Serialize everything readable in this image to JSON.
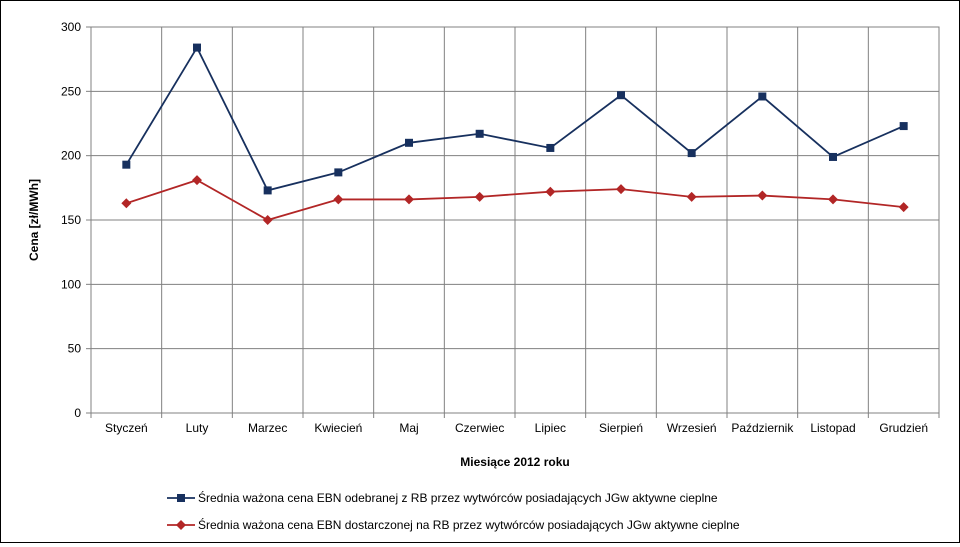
{
  "chart_data": {
    "type": "line",
    "xlabel": "Miesiące 2012 roku",
    "ylabel": "Cena [zł/MWh]",
    "ylim": [
      0,
      300
    ],
    "yticks": [
      0,
      50,
      100,
      150,
      200,
      250,
      300
    ],
    "grid": true,
    "legend_position": "bottom",
    "categories": [
      "Styczeń",
      "Luty",
      "Marzec",
      "Kwiecień",
      "Maj",
      "Czerwiec",
      "Lipiec",
      "Sierpień",
      "Wrzesień",
      "Październik",
      "Listopad",
      "Grudzień"
    ],
    "series": [
      {
        "name": "Średnia ważona cena EBN odebranej z RB przez wytwórców posiadających JGw aktywne cieplne",
        "color": "#17305e",
        "marker": "square",
        "values": [
          193,
          284,
          173,
          187,
          210,
          217,
          206,
          247,
          202,
          246,
          199,
          223
        ]
      },
      {
        "name": "Średnia ważona cena EBN dostarczonej na RB przez wytwórców posiadających JGw aktywne cieplne",
        "color": "#b22626",
        "marker": "diamond",
        "values": [
          163,
          181,
          150,
          166,
          166,
          168,
          172,
          174,
          168,
          169,
          166,
          160
        ]
      }
    ]
  }
}
